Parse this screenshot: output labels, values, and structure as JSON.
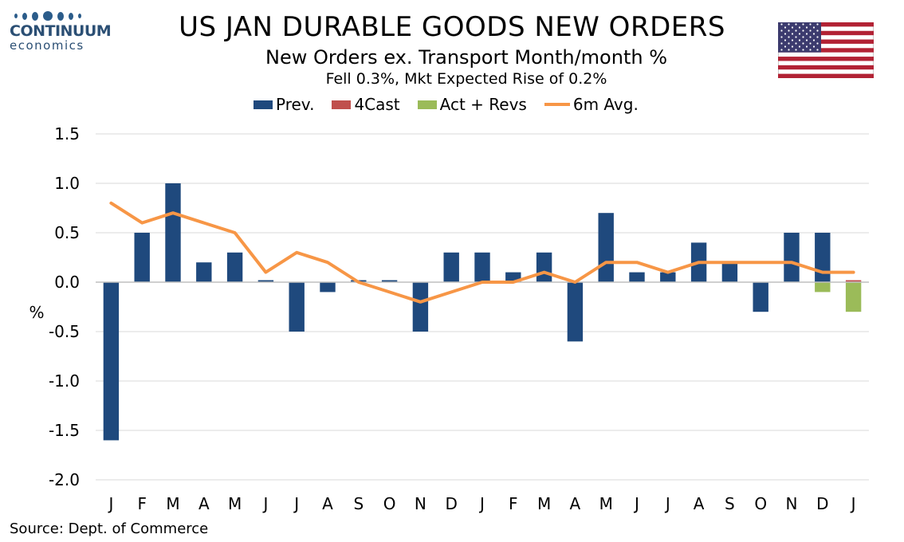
{
  "logo": {
    "name": "CONTINUUM",
    "sub": "economics"
  },
  "title": "US JAN DURABLE GOODS NEW ORDERS",
  "subtitle": "New Orders ex. Transport Month/month %",
  "subtitle2": "Fell 0.3%, Mkt Expected Rise of 0.2%",
  "flag": "us-flag-icon",
  "legend": [
    {
      "label": "Prev.",
      "color": "#1f497d",
      "kind": "bar"
    },
    {
      "label": "4Cast",
      "color": "#c0504d",
      "kind": "bar"
    },
    {
      "label": "Act + Revs",
      "color": "#9bbb59",
      "kind": "bar"
    },
    {
      "label": "6m Avg.",
      "color": "#f79646",
      "kind": "line"
    }
  ],
  "source": "Source: Dept. of Commerce",
  "chart_data": {
    "type": "bar",
    "ylabel": "%",
    "ylim": [
      -2.0,
      1.5
    ],
    "yticks": [
      1.5,
      1.0,
      0.5,
      0.0,
      -0.5,
      -1.0,
      -1.5,
      -2.0
    ],
    "ytick_labels": [
      "1.5",
      "1.0",
      "0.5",
      "0.0",
      "-0.5",
      "-1.0",
      "-1.5",
      "-2.0"
    ],
    "grid": true,
    "legend_position": "top",
    "categories": [
      "J",
      "F",
      "M",
      "A",
      "M",
      "J",
      "J",
      "A",
      "S",
      "O",
      "N",
      "D",
      "J",
      "F",
      "M",
      "A",
      "M",
      "J",
      "J",
      "A",
      "S",
      "O",
      "N",
      "D",
      "J"
    ],
    "series": [
      {
        "name": "Prev.",
        "type": "bar",
        "color": "#1f497d",
        "values": [
          -1.6,
          0.5,
          1.0,
          0.2,
          0.3,
          0.02,
          -0.5,
          -0.1,
          0.02,
          0.02,
          -0.5,
          0.3,
          0.3,
          0.1,
          0.3,
          -0.6,
          0.7,
          0.1,
          0.1,
          0.4,
          0.2,
          -0.3,
          0.5,
          0.5,
          null
        ]
      },
      {
        "name": "4Cast",
        "type": "bar",
        "color": "#c0504d",
        "values": [
          null,
          null,
          null,
          null,
          null,
          null,
          null,
          null,
          null,
          null,
          null,
          null,
          null,
          null,
          null,
          null,
          null,
          null,
          null,
          null,
          null,
          null,
          null,
          null,
          0.02
        ]
      },
      {
        "name": "Act + Revs",
        "type": "bar",
        "color": "#9bbb59",
        "values": [
          null,
          null,
          null,
          null,
          null,
          null,
          null,
          null,
          null,
          null,
          null,
          null,
          null,
          null,
          null,
          null,
          null,
          null,
          null,
          null,
          null,
          null,
          null,
          -0.1,
          -0.3
        ]
      },
      {
        "name": "6m Avg.",
        "type": "line",
        "color": "#f79646",
        "values": [
          0.8,
          0.6,
          0.7,
          0.6,
          0.5,
          0.1,
          0.3,
          0.2,
          0.0,
          -0.1,
          -0.2,
          -0.1,
          0.0,
          0.0,
          0.1,
          0.0,
          0.2,
          0.2,
          0.1,
          0.2,
          0.2,
          0.2,
          0.2,
          0.1,
          0.1
        ]
      }
    ]
  }
}
